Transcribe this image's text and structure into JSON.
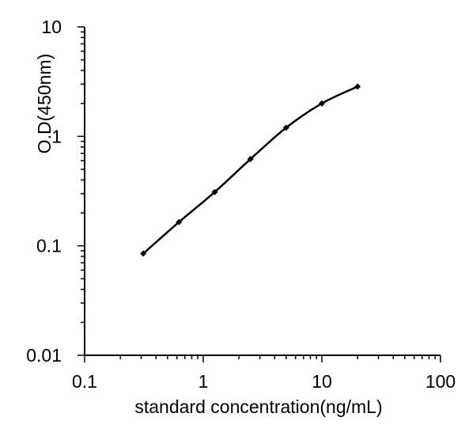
{
  "chart_data": {
    "type": "line",
    "title": "",
    "xlabel": "standard concentration(ng/mL)",
    "ylabel": "O.D(450nm)",
    "x_scale": "log",
    "y_scale": "log",
    "xlim": [
      0.1,
      100
    ],
    "ylim": [
      0.01,
      10
    ],
    "x_ticks": [
      {
        "value": 0.1,
        "label": "0.1"
      },
      {
        "value": 1,
        "label": "1"
      },
      {
        "value": 10,
        "label": "10"
      },
      {
        "value": 100,
        "label": "100"
      }
    ],
    "y_ticks": [
      {
        "value": 0.01,
        "label": "0.01"
      },
      {
        "value": 0.1,
        "label": "0.1"
      },
      {
        "value": 1,
        "label": "1"
      },
      {
        "value": 10,
        "label": "10"
      }
    ],
    "grid": false,
    "legend": "none",
    "series": [
      {
        "x": [
          0.3125,
          0.625,
          1.25,
          2.5,
          5,
          10,
          20
        ],
        "y": [
          0.085,
          0.165,
          0.31,
          0.62,
          1.2,
          2.0,
          2.85
        ],
        "color": "#000000",
        "marker": "diamond"
      }
    ]
  }
}
